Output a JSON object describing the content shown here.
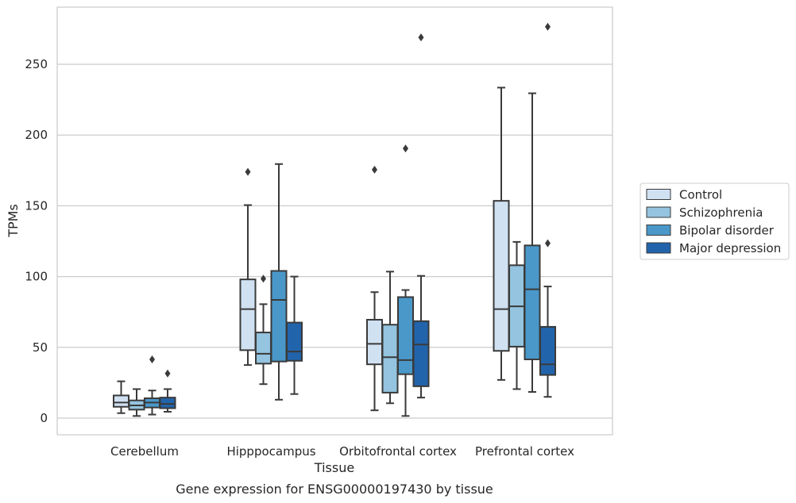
{
  "chart_data": {
    "type": "box",
    "title": "",
    "caption": "Gene expression for ENSG00000197430 by tissue",
    "xlabel": "Tissue",
    "ylabel": "TPMs",
    "ylim": [
      -12,
      291
    ],
    "yticks": [
      0,
      50,
      100,
      150,
      200,
      250
    ],
    "grid": "horizontal",
    "legend_position": "right",
    "categories": [
      "Cerebellum",
      "Hipppocampus",
      "Orbitofrontal cortex",
      "Prefrontal cortex"
    ],
    "series": [
      {
        "name": "Control",
        "color": "#d0e1f2",
        "boxes": [
          {
            "min": 3.5,
            "q1": 8,
            "median": 11,
            "q3": 16,
            "max": 26,
            "outliers": []
          },
          {
            "min": 37.5,
            "q1": 48,
            "median": 77,
            "q3": 98,
            "max": 150.5,
            "outliers": [
              174
            ]
          },
          {
            "min": 5.5,
            "q1": 38,
            "median": 52.5,
            "q3": 69.5,
            "max": 89,
            "outliers": [
              175.5
            ]
          },
          {
            "min": 27,
            "q1": 47.5,
            "median": 77,
            "q3": 153.5,
            "max": 233.5,
            "outliers": []
          }
        ]
      },
      {
        "name": "Schizophrenia",
        "color": "#94c4df",
        "boxes": [
          {
            "min": 1.5,
            "q1": 6,
            "median": 9,
            "q3": 12.5,
            "max": 20.5,
            "outliers": []
          },
          {
            "min": 24,
            "q1": 38.5,
            "median": 45.5,
            "q3": 60.5,
            "max": 80.5,
            "outliers": [
              98.5
            ]
          },
          {
            "min": 10.5,
            "q1": 18,
            "median": 43,
            "q3": 66,
            "max": 103.5,
            "outliers": []
          },
          {
            "min": 20.5,
            "q1": 50.5,
            "median": 79,
            "q3": 108,
            "max": 124.5,
            "outliers": []
          }
        ]
      },
      {
        "name": "Bipolar disorder",
        "color": "#4a98c9",
        "boxes": [
          {
            "min": 2.5,
            "q1": 7.5,
            "median": 11,
            "q3": 14,
            "max": 19.5,
            "outliers": [
              41.5
            ]
          },
          {
            "min": 13,
            "q1": 40,
            "median": 83.5,
            "q3": 104,
            "max": 179.5,
            "outliers": []
          },
          {
            "min": 1.5,
            "q1": 31,
            "median": 41,
            "q3": 85.5,
            "max": 90.5,
            "outliers": [
              190.5
            ]
          },
          {
            "min": 18.5,
            "q1": 41.5,
            "median": 91,
            "q3": 122,
            "max": 229.5,
            "outliers": []
          }
        ]
      },
      {
        "name": "Major depression",
        "color": "#2264ab",
        "boxes": [
          {
            "min": 4.5,
            "q1": 7,
            "median": 10,
            "q3": 14.5,
            "max": 20.5,
            "outliers": [
              31.5
            ]
          },
          {
            "min": 17,
            "q1": 40.5,
            "median": 47,
            "q3": 67.5,
            "max": 100,
            "outliers": []
          },
          {
            "min": 14.5,
            "q1": 22.5,
            "median": 52,
            "q3": 68.5,
            "max": 100.5,
            "outliers": [
              269
            ]
          },
          {
            "min": 15,
            "q1": 30.5,
            "median": 38,
            "q3": 64.5,
            "max": 93,
            "outliers": [
              123.5,
              276.5
            ]
          }
        ]
      }
    ]
  }
}
